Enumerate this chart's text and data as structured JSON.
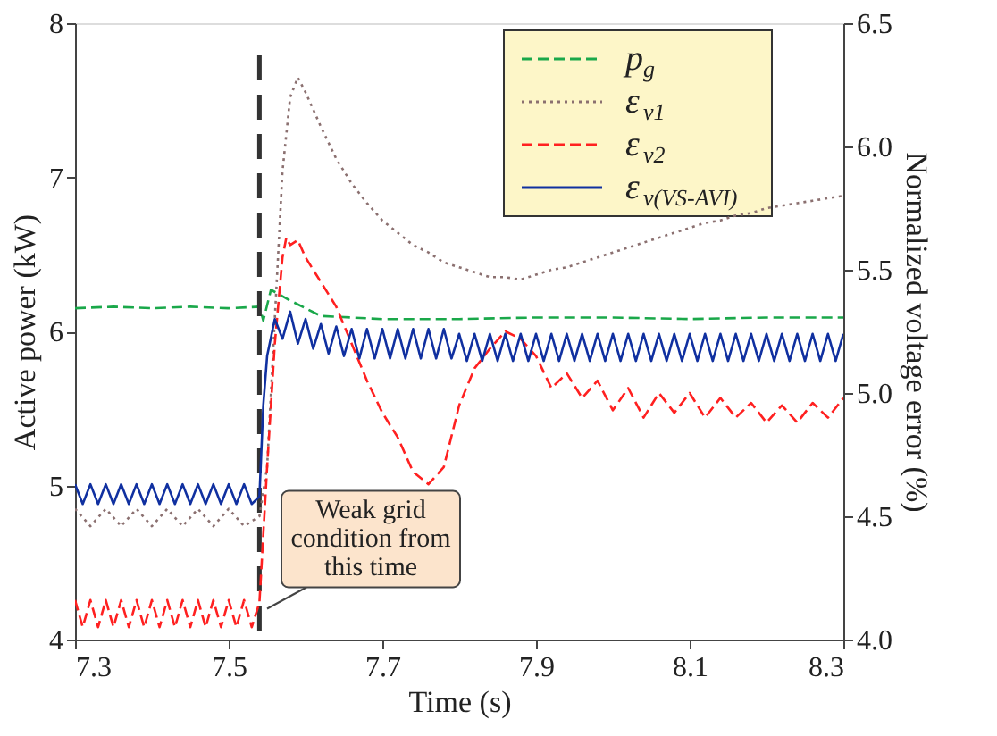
{
  "chart_data": {
    "type": "line",
    "xlabel": "Time (s)",
    "ylabel": "Active power (kW)",
    "y2label": "Normalized voltage error (%)",
    "xlim": [
      7.3,
      8.3
    ],
    "xticks": [
      7.3,
      7.5,
      7.7,
      7.9,
      8.1,
      8.3
    ],
    "ylim": [
      4,
      8
    ],
    "yticks": [
      4,
      5,
      6,
      7,
      8
    ],
    "y2lim": [
      4.0,
      6.5
    ],
    "y2ticks": [
      {
        "value": 4,
        "label": "4.0"
      },
      4.5,
      {
        "value": 5,
        "label": "5.0"
      },
      5.5,
      {
        "value": 6,
        "label": "6.0"
      },
      6.5
    ],
    "grid": false,
    "legend": "top right",
    "ref_lines": [
      {
        "axis": "x",
        "value": 7.54,
        "label": null,
        "color": "#333333",
        "line_style": "dashed"
      }
    ],
    "annotations": [
      {
        "text": "Weak grid\ncondition from\nthis time",
        "x": 7.55,
        "y": 4.2
      }
    ],
    "series": [
      {
        "name": "p$_{g}$",
        "color": "#1aa84a",
        "line_style": "dashed",
        "x": [
          7.3,
          7.35,
          7.4,
          7.45,
          7.5,
          7.54,
          7.545,
          7.555,
          7.58,
          7.62,
          7.7,
          7.8,
          7.9,
          8.0,
          8.1,
          8.2,
          8.3
        ],
        "values": [
          6.15,
          6.16,
          6.15,
          6.16,
          6.15,
          6.16,
          6.07,
          6.27,
          6.2,
          6.1,
          6.08,
          6.08,
          6.09,
          6.09,
          6.08,
          6.09,
          6.09
        ]
      },
      {
        "name": "ε$_{v1}$",
        "color": "#8b7070",
        "line_style": "dotted",
        "axis": "y2",
        "x": [
          7.3,
          7.32,
          7.34,
          7.36,
          7.38,
          7.4,
          7.42,
          7.44,
          7.46,
          7.48,
          7.5,
          7.52,
          7.54,
          7.55,
          7.56,
          7.57,
          7.58,
          7.59,
          7.6,
          7.62,
          7.64,
          7.66,
          7.68,
          7.7,
          7.72,
          7.74,
          7.76,
          7.78,
          7.8,
          7.82,
          7.84,
          7.86,
          7.88,
          7.9,
          7.92,
          7.94,
          7.96,
          7.98,
          8.0,
          8.02,
          8.04,
          8.06,
          8.08,
          8.1,
          8.12,
          8.14,
          8.16,
          8.18,
          8.2,
          8.22,
          8.24,
          8.26,
          8.28,
          8.3
        ],
        "values": [
          4.53,
          4.46,
          4.53,
          4.46,
          4.53,
          4.46,
          4.53,
          4.46,
          4.53,
          4.46,
          4.53,
          4.46,
          4.5,
          4.7,
          5.3,
          5.9,
          6.2,
          6.28,
          6.22,
          6.08,
          5.95,
          5.85,
          5.77,
          5.7,
          5.65,
          5.6,
          5.57,
          5.53,
          5.51,
          5.49,
          5.47,
          5.47,
          5.46,
          5.48,
          5.5,
          5.51,
          5.53,
          5.55,
          5.57,
          5.59,
          5.61,
          5.63,
          5.65,
          5.67,
          5.69,
          5.7,
          5.72,
          5.73,
          5.75,
          5.76,
          5.77,
          5.78,
          5.79,
          5.8
        ]
      },
      {
        "name": "ε$_{v2}$",
        "color": "#ff2020",
        "line_style": "dashed",
        "axis": "y2",
        "x": [
          7.3,
          7.31,
          7.32,
          7.33,
          7.34,
          7.35,
          7.36,
          7.37,
          7.38,
          7.39,
          7.4,
          7.41,
          7.42,
          7.43,
          7.44,
          7.45,
          7.46,
          7.47,
          7.48,
          7.49,
          7.5,
          7.51,
          7.52,
          7.53,
          7.54,
          7.55,
          7.56,
          7.57,
          7.575,
          7.58,
          7.59,
          7.6,
          7.62,
          7.64,
          7.66,
          7.68,
          7.7,
          7.72,
          7.74,
          7.76,
          7.78,
          7.8,
          7.82,
          7.84,
          7.86,
          7.88,
          7.9,
          7.92,
          7.94,
          7.96,
          7.98,
          8.0,
          8.02,
          8.04,
          8.06,
          8.08,
          8.1,
          8.12,
          8.14,
          8.16,
          8.18,
          8.2,
          8.22,
          8.24,
          8.26,
          8.28,
          8.3
        ],
        "values": [
          4.16,
          4.05,
          4.16,
          4.05,
          4.16,
          4.05,
          4.16,
          4.05,
          4.16,
          4.05,
          4.16,
          4.05,
          4.16,
          4.05,
          4.16,
          4.05,
          4.16,
          4.05,
          4.16,
          4.05,
          4.16,
          4.05,
          4.16,
          4.05,
          4.15,
          4.7,
          5.2,
          5.55,
          5.63,
          5.6,
          5.62,
          5.55,
          5.45,
          5.35,
          5.2,
          5.05,
          4.92,
          4.82,
          4.68,
          4.63,
          4.7,
          4.95,
          5.1,
          5.18,
          5.25,
          5.22,
          5.15,
          5.02,
          5.08,
          4.98,
          5.05,
          4.93,
          5.02,
          4.9,
          5.0,
          4.92,
          5.0,
          4.9,
          4.98,
          4.9,
          4.96,
          4.88,
          4.95,
          4.88,
          4.96,
          4.9,
          4.98
        ]
      },
      {
        "name": "ε$_{v(VS-AVI)}$",
        "color": "#1030a0",
        "line_style": "solid",
        "axis": "y2",
        "x": [
          7.3,
          7.31,
          7.32,
          7.33,
          7.34,
          7.35,
          7.36,
          7.37,
          7.38,
          7.39,
          7.4,
          7.41,
          7.42,
          7.43,
          7.44,
          7.45,
          7.46,
          7.47,
          7.48,
          7.49,
          7.5,
          7.51,
          7.52,
          7.53,
          7.54,
          7.545,
          7.55,
          7.56,
          7.57,
          7.58,
          7.59,
          7.6,
          7.61,
          7.62,
          7.63,
          7.64,
          7.65,
          7.66,
          7.67,
          7.68,
          7.69,
          7.7,
          7.71,
          7.72,
          7.73,
          7.74,
          7.75,
          7.76,
          7.77,
          7.78,
          7.79,
          7.8,
          7.81,
          7.82,
          7.83,
          7.84,
          7.85,
          7.86,
          7.87,
          7.88,
          7.89,
          7.9,
          7.91,
          7.92,
          7.93,
          7.94,
          7.95,
          7.96,
          7.97,
          7.98,
          7.99,
          8.0,
          8.01,
          8.02,
          8.03,
          8.04,
          8.05,
          8.06,
          8.07,
          8.08,
          8.09,
          8.1,
          8.11,
          8.12,
          8.13,
          8.14,
          8.15,
          8.16,
          8.17,
          8.18,
          8.19,
          8.2,
          8.21,
          8.22,
          8.23,
          8.24,
          8.25,
          8.26,
          8.27,
          8.28,
          8.29,
          8.3
        ],
        "values": [
          4.63,
          4.55,
          4.63,
          4.55,
          4.63,
          4.55,
          4.63,
          4.55,
          4.63,
          4.55,
          4.63,
          4.55,
          4.63,
          4.55,
          4.63,
          4.55,
          4.63,
          4.55,
          4.63,
          4.55,
          4.63,
          4.55,
          4.63,
          4.55,
          4.58,
          4.95,
          5.15,
          5.3,
          5.22,
          5.33,
          5.2,
          5.3,
          5.18,
          5.28,
          5.16,
          5.27,
          5.15,
          5.26,
          5.14,
          5.26,
          5.14,
          5.26,
          5.14,
          5.26,
          5.14,
          5.26,
          5.14,
          5.26,
          5.14,
          5.26,
          5.14,
          5.24,
          5.13,
          5.24,
          5.13,
          5.24,
          5.13,
          5.24,
          5.13,
          5.24,
          5.13,
          5.24,
          5.13,
          5.24,
          5.13,
          5.24,
          5.13,
          5.24,
          5.13,
          5.24,
          5.13,
          5.24,
          5.13,
          5.24,
          5.13,
          5.24,
          5.13,
          5.24,
          5.13,
          5.24,
          5.13,
          5.24,
          5.13,
          5.24,
          5.13,
          5.24,
          5.13,
          5.24,
          5.13,
          5.24,
          5.13,
          5.24,
          5.13,
          5.24,
          5.13,
          5.24,
          5.13,
          5.24,
          5.13,
          5.24,
          5.13,
          5.24
        ]
      }
    ]
  }
}
